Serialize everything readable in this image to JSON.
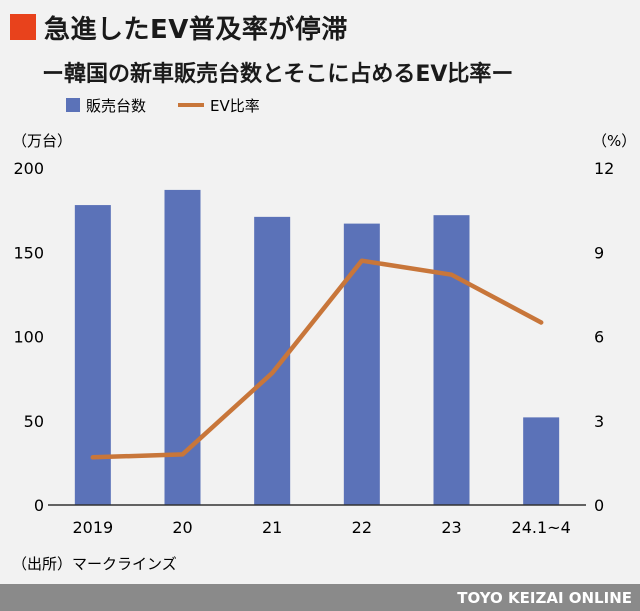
{
  "chart_data": {
    "type": "bar",
    "title": "急進したEV普及率が停滞",
    "subtitle": "ー韓国の新車販売台数とそこに占めるEV比率ー",
    "categories": [
      "2019",
      "20",
      "21",
      "22",
      "23",
      "24.1~4"
    ],
    "series": [
      {
        "name": "販売台数",
        "type": "bar",
        "axis": "left",
        "values": [
          178,
          187,
          171,
          167,
          172,
          52
        ]
      },
      {
        "name": "EV比率",
        "type": "line",
        "axis": "right",
        "values": [
          1.7,
          1.8,
          4.7,
          8.7,
          8.2,
          6.5
        ]
      }
    ],
    "y_left": {
      "unit_label": "（万台）",
      "range": [
        0,
        200
      ],
      "ticks": [
        "0",
        "50",
        "100",
        "150",
        "200"
      ]
    },
    "y_right": {
      "unit_label": "（%）",
      "range": [
        0,
        12
      ],
      "ticks": [
        "0",
        "3",
        "6",
        "9",
        "12"
      ]
    },
    "legend_placement": "top-left",
    "grid": false,
    "source": "（出所）マークラインズ",
    "colors": {
      "bar": "#5b72b8",
      "line": "#c8763a",
      "accent": "#e8421c",
      "footer": "#8a8a8a"
    }
  },
  "footer": {
    "brand": "TOYO KEIZAI ONLINE"
  }
}
